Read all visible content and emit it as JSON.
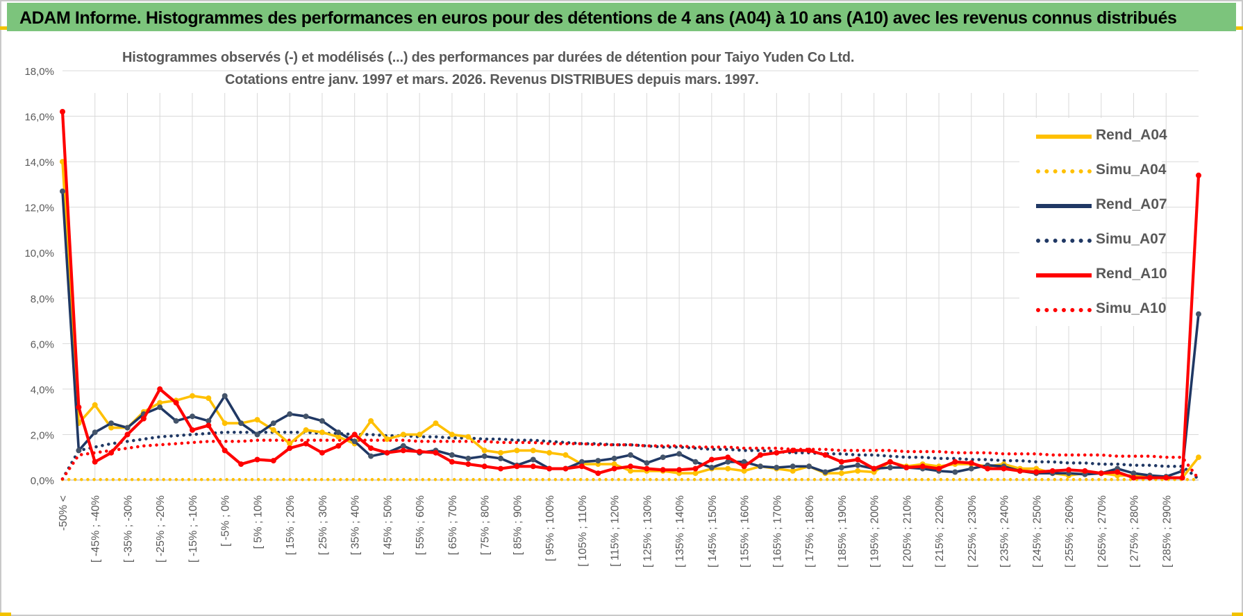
{
  "header": {
    "title": "ADAM Informe. Histogrammes des performances en euros pour des détentions de 4 ans (A04) à 10 ans (A10) avec les revenus connus distribués"
  },
  "colors": {
    "banner": "#7cc47c",
    "A04": "#ffc000",
    "A07": "#203864",
    "A10": "#ff0000",
    "grid": "#d9d9d9",
    "text": "#595959"
  },
  "chart_data": {
    "type": "line",
    "title_line1": "Histogrammes observés (-) et modélisés (...) des performances par durées de détention pour Taiyo Yuden Co Ltd.",
    "title_line2": "Cotations entre janv. 1997 et mars. 2026. Revenus DISTRIBUES depuis mars. 1997.",
    "xlabel": "",
    "ylabel": "",
    "ylim": [
      0,
      18
    ],
    "y_ticks": [
      "0,0%",
      "2,0%",
      "4,0%",
      "6,0%",
      "8,0%",
      "10,0%",
      "12,0%",
      "14,0%",
      "16,0%",
      "18,0%"
    ],
    "x_tick_labels": [
      "-50% <",
      "[ -45% ; -40%",
      "[ -35% ; -30%",
      "[ -25% ; -20%",
      "[ -15% ; -10%",
      "[ -5% ; 0%",
      "[ 5% ; 10%",
      "[ 15% ; 20%",
      "[ 25% ; 30%",
      "[ 35% ; 40%",
      "[ 45% ; 50%",
      "[ 55% ; 60%",
      "[ 65% ; 70%",
      "[ 75% ; 80%",
      "[ 85% ; 90%",
      "[ 95% ; 100%",
      "[ 105% ; 110%",
      "[ 115% ; 120%",
      "[ 125% ; 130%",
      "[ 135% ; 140%",
      "[ 145% ; 150%",
      "[ 155% ; 160%",
      "[ 165% ; 170%",
      "[ 175% ; 180%",
      "[ 185% ; 190%",
      "[ 195% ; 200%",
      "[ 205% ; 210%",
      "[ 215% ; 220%",
      "[ 225% ; 230%",
      "[ 235% ; 240%",
      "[ 245% ; 250%",
      "[ 255% ; 260%",
      "[ 265% ; 270%",
      "[ 275% ; 280%",
      "[ 285% ; 290%"
    ],
    "num_points": 71,
    "grid": true,
    "legend_position": "right",
    "series": [
      {
        "name": "Rend_A04",
        "style": "solid",
        "color": "#ffc000",
        "values": [
          14.0,
          2.5,
          3.3,
          2.3,
          2.3,
          3.0,
          3.4,
          3.5,
          3.7,
          3.6,
          2.5,
          2.5,
          2.65,
          2.2,
          1.6,
          2.2,
          2.1,
          1.9,
          1.6,
          2.6,
          1.8,
          2.0,
          2.0,
          2.5,
          2.0,
          1.9,
          1.3,
          1.2,
          1.3,
          1.3,
          1.2,
          1.1,
          0.7,
          0.7,
          0.7,
          0.4,
          0.4,
          0.4,
          0.3,
          0.3,
          0.5,
          0.5,
          0.4,
          0.6,
          0.5,
          0.4,
          0.6,
          0.3,
          0.3,
          0.4,
          0.35,
          0.8,
          0.6,
          0.7,
          0.6,
          0.7,
          0.7,
          0.6,
          0.7,
          0.5,
          0.5,
          0.3,
          0.2,
          0.3,
          0.3,
          0.2,
          0.2,
          0.1,
          0.1,
          0.1,
          1.0
        ]
      },
      {
        "name": "Simu_A04",
        "style": "dotted",
        "color": "#ffc000",
        "values": [
          0.02,
          0.02,
          0.02,
          0.02,
          0.02,
          0.02,
          0.02,
          0.02,
          0.02,
          0.02,
          0.02,
          0.02,
          0.02,
          0.02,
          0.02,
          0.02,
          0.02,
          0.02,
          0.02,
          0.02,
          0.02,
          0.02,
          0.02,
          0.02,
          0.02,
          0.02,
          0.02,
          0.02,
          0.02,
          0.02,
          0.02,
          0.02,
          0.02,
          0.02,
          0.02,
          0.02,
          0.02,
          0.02,
          0.02,
          0.02,
          0.02,
          0.02,
          0.02,
          0.02,
          0.02,
          0.02,
          0.02,
          0.02,
          0.02,
          0.02,
          0.02,
          0.02,
          0.02,
          0.02,
          0.02,
          0.02,
          0.02,
          0.02,
          0.02,
          0.02,
          0.02,
          0.02,
          0.02,
          0.02,
          0.02,
          0.02,
          0.02,
          0.02,
          0.02,
          0.02,
          0.02
        ]
      },
      {
        "name": "Rend_A07",
        "style": "solid",
        "color": "#203864",
        "values": [
          12.7,
          1.3,
          2.1,
          2.5,
          2.3,
          2.9,
          3.2,
          2.6,
          2.8,
          2.6,
          3.7,
          2.5,
          2.0,
          2.5,
          2.9,
          2.8,
          2.6,
          2.1,
          1.7,
          1.05,
          1.2,
          1.5,
          1.2,
          1.3,
          1.1,
          0.95,
          1.05,
          0.95,
          0.65,
          0.9,
          0.5,
          0.5,
          0.8,
          0.85,
          0.95,
          1.1,
          0.75,
          1.0,
          1.15,
          0.8,
          0.55,
          0.8,
          0.8,
          0.6,
          0.55,
          0.6,
          0.6,
          0.35,
          0.55,
          0.65,
          0.5,
          0.55,
          0.55,
          0.5,
          0.4,
          0.35,
          0.5,
          0.65,
          0.6,
          0.4,
          0.3,
          0.3,
          0.3,
          0.25,
          0.3,
          0.5,
          0.3,
          0.2,
          0.15,
          0.4,
          7.3
        ]
      },
      {
        "name": "Simu_A07",
        "style": "dotted",
        "color": "#203864",
        "values": [
          0.05,
          1.3,
          1.45,
          1.6,
          1.7,
          1.8,
          1.9,
          1.95,
          2.0,
          2.05,
          2.1,
          2.1,
          2.1,
          2.1,
          2.1,
          2.1,
          2.05,
          2.05,
          2.0,
          2.0,
          1.95,
          1.95,
          1.9,
          1.9,
          1.85,
          1.85,
          1.8,
          1.8,
          1.75,
          1.75,
          1.7,
          1.65,
          1.6,
          1.6,
          1.55,
          1.55,
          1.5,
          1.45,
          1.45,
          1.4,
          1.35,
          1.35,
          1.3,
          1.3,
          1.25,
          1.2,
          1.2,
          1.15,
          1.15,
          1.1,
          1.1,
          1.05,
          1.0,
          1.0,
          0.95,
          0.95,
          0.9,
          0.9,
          0.85,
          0.85,
          0.8,
          0.8,
          0.75,
          0.75,
          0.7,
          0.7,
          0.65,
          0.65,
          0.6,
          0.6,
          0.05
        ]
      },
      {
        "name": "Rend_A10",
        "style": "solid",
        "color": "#ff0000",
        "values": [
          16.2,
          3.2,
          0.8,
          1.2,
          2.0,
          2.7,
          4.0,
          3.4,
          2.2,
          2.4,
          1.3,
          0.7,
          0.9,
          0.85,
          1.4,
          1.6,
          1.2,
          1.5,
          2.0,
          1.4,
          1.2,
          1.3,
          1.25,
          1.2,
          0.8,
          0.7,
          0.6,
          0.5,
          0.6,
          0.6,
          0.5,
          0.5,
          0.6,
          0.3,
          0.5,
          0.6,
          0.5,
          0.45,
          0.45,
          0.5,
          0.9,
          1.0,
          0.6,
          1.1,
          1.2,
          1.3,
          1.3,
          1.1,
          0.8,
          0.9,
          0.5,
          0.8,
          0.55,
          0.6,
          0.5,
          0.8,
          0.75,
          0.5,
          0.5,
          0.4,
          0.35,
          0.4,
          0.45,
          0.4,
          0.3,
          0.35,
          0.1,
          0.1,
          0.1,
          0.1,
          13.4
        ]
      },
      {
        "name": "Simu_A10",
        "style": "dotted",
        "color": "#ff0000",
        "values": [
          0.05,
          1.1,
          1.2,
          1.3,
          1.4,
          1.5,
          1.55,
          1.6,
          1.65,
          1.7,
          1.7,
          1.7,
          1.75,
          1.75,
          1.75,
          1.75,
          1.75,
          1.75,
          1.75,
          1.75,
          1.75,
          1.75,
          1.7,
          1.7,
          1.7,
          1.7,
          1.7,
          1.65,
          1.65,
          1.65,
          1.6,
          1.6,
          1.6,
          1.55,
          1.55,
          1.55,
          1.5,
          1.5,
          1.5,
          1.45,
          1.45,
          1.45,
          1.4,
          1.4,
          1.4,
          1.35,
          1.35,
          1.35,
          1.3,
          1.3,
          1.3,
          1.3,
          1.25,
          1.25,
          1.25,
          1.2,
          1.2,
          1.2,
          1.15,
          1.15,
          1.15,
          1.1,
          1.1,
          1.1,
          1.1,
          1.05,
          1.05,
          1.05,
          1.0,
          1.0,
          0.05
        ]
      }
    ]
  }
}
